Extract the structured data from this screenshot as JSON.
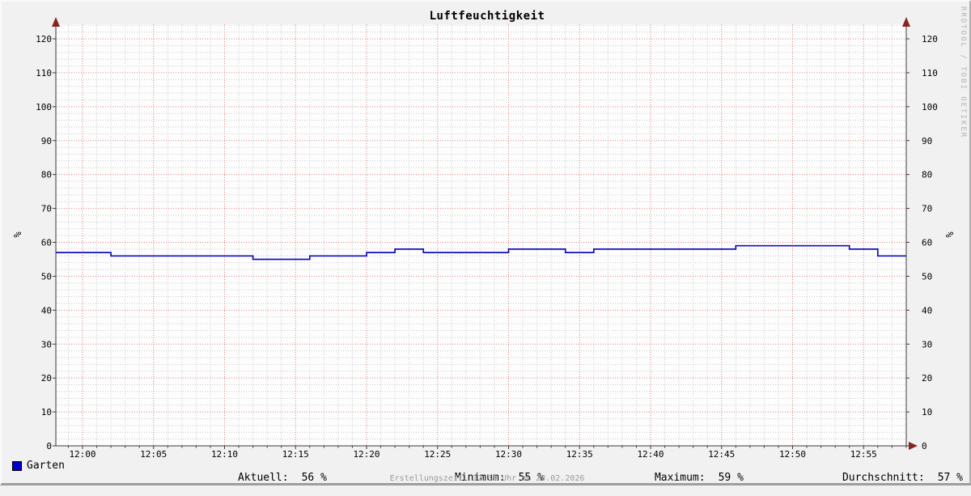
{
  "page": {
    "title": "Luftfeuchtigkeit",
    "watermark": "RRDTOOL / TOBI OETIKER",
    "footer": "Erstellungszeit: 12:58 Uhr am 28.02.2026"
  },
  "legend": {
    "series_label": "Garten",
    "stats": [
      {
        "label": "Aktuell:",
        "value": "56 %"
      },
      {
        "label": "Minimum:",
        "value": "55 %"
      },
      {
        "label": "Maximum:",
        "value": "59 %"
      },
      {
        "label": "Durchschnitt:",
        "value": "57 %"
      }
    ]
  },
  "chart_data": {
    "type": "line",
    "title": "Luftfeuchtigkeit",
    "ylabel": "%",
    "ylabel_right": "%",
    "ylim": [
      0,
      125
    ],
    "y_major_ticks": [
      0,
      10,
      20,
      30,
      40,
      50,
      60,
      70,
      80,
      90,
      100,
      110,
      120
    ],
    "y_minor_step": 2,
    "x_axis": {
      "range_minutes": [
        -1.88,
        58
      ],
      "minor_step_minutes": 1,
      "ticks": [
        {
          "t": 0,
          "label": "12:00"
        },
        {
          "t": 5,
          "label": "12:05"
        },
        {
          "t": 10,
          "label": "12:10"
        },
        {
          "t": 15,
          "label": "12:15"
        },
        {
          "t": 20,
          "label": "12:20"
        },
        {
          "t": 25,
          "label": "12:25"
        },
        {
          "t": 30,
          "label": "12:30"
        },
        {
          "t": 35,
          "label": "12:35"
        },
        {
          "t": 40,
          "label": "12:40"
        },
        {
          "t": 45,
          "label": "12:45"
        },
        {
          "t": 50,
          "label": "12:50"
        },
        {
          "t": 55,
          "label": "12:55"
        }
      ]
    },
    "series": [
      {
        "name": "Garten",
        "color": "#0000cc",
        "line_color": "#0f0fbe",
        "unit": "%",
        "stats": {
          "aktuell": 56,
          "minimum": 55,
          "maximum": 59,
          "durchschnitt": 57
        },
        "steps_minutes_value": [
          [
            -1.88,
            57
          ],
          [
            2,
            56
          ],
          [
            12,
            55
          ],
          [
            16,
            56
          ],
          [
            20,
            57
          ],
          [
            22,
            58
          ],
          [
            24,
            57
          ],
          [
            30,
            58
          ],
          [
            34,
            57
          ],
          [
            36,
            58
          ],
          [
            46,
            59
          ],
          [
            54,
            58
          ],
          [
            56,
            56
          ],
          [
            58,
            56
          ]
        ]
      }
    ],
    "legend_position": "bottom",
    "grid_on": true,
    "colors": {
      "background": "#f1f1f1",
      "canvas": "#fdfdfd",
      "minor_grid": "#cbcbcb",
      "major_grid": "#e08181",
      "axis": "#3a3a3a",
      "arrow": "#8a2323",
      "tick_text": "#000000"
    }
  }
}
